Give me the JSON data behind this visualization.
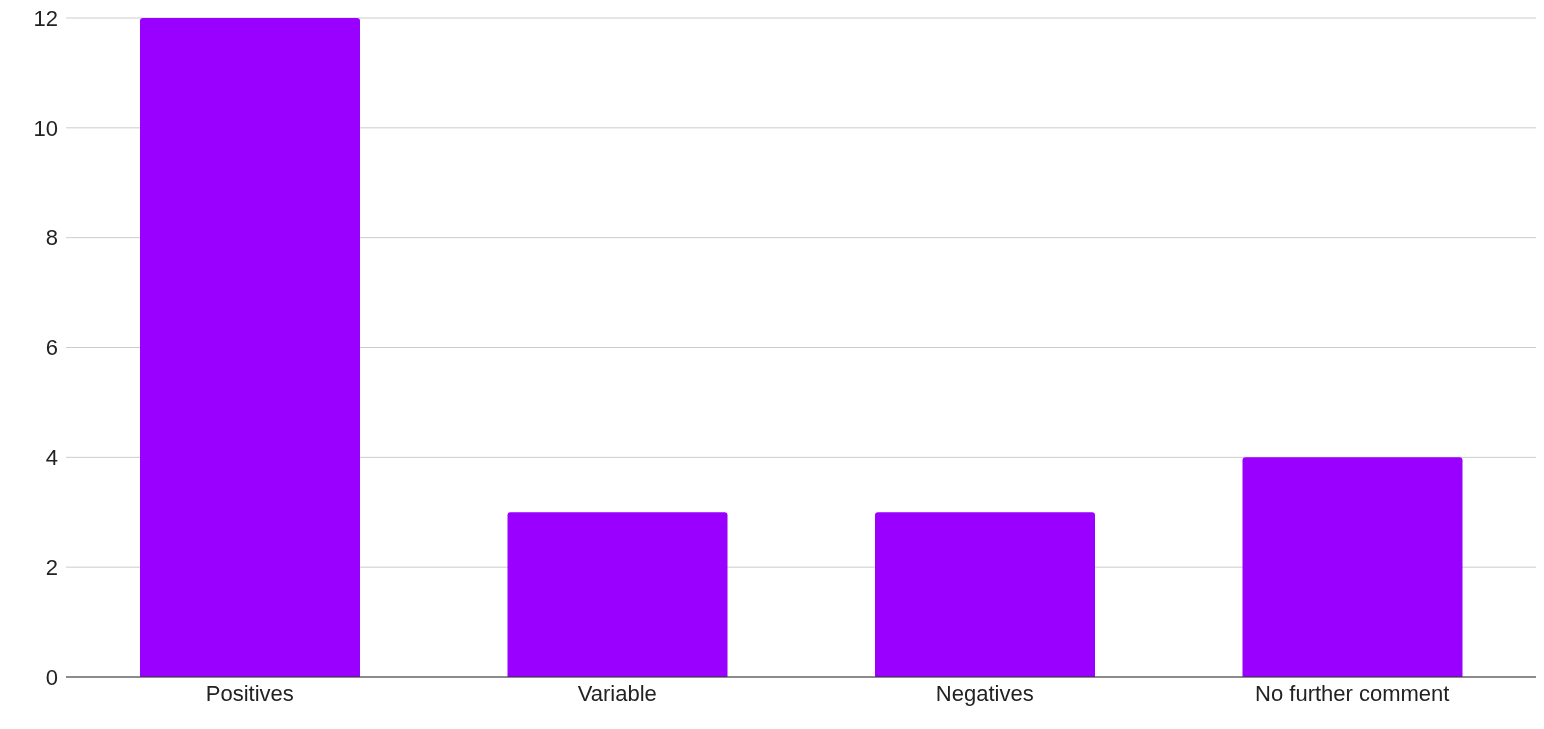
{
  "chart_data": {
    "type": "bar",
    "categories": [
      "Positives",
      "Variable",
      "Negatives",
      "No further comment"
    ],
    "values": [
      12,
      3,
      3,
      4
    ],
    "color": "#9900ff",
    "ylim": [
      0,
      12
    ],
    "yticks": [
      0,
      2,
      4,
      6,
      8,
      10,
      12
    ],
    "grid": "y"
  }
}
